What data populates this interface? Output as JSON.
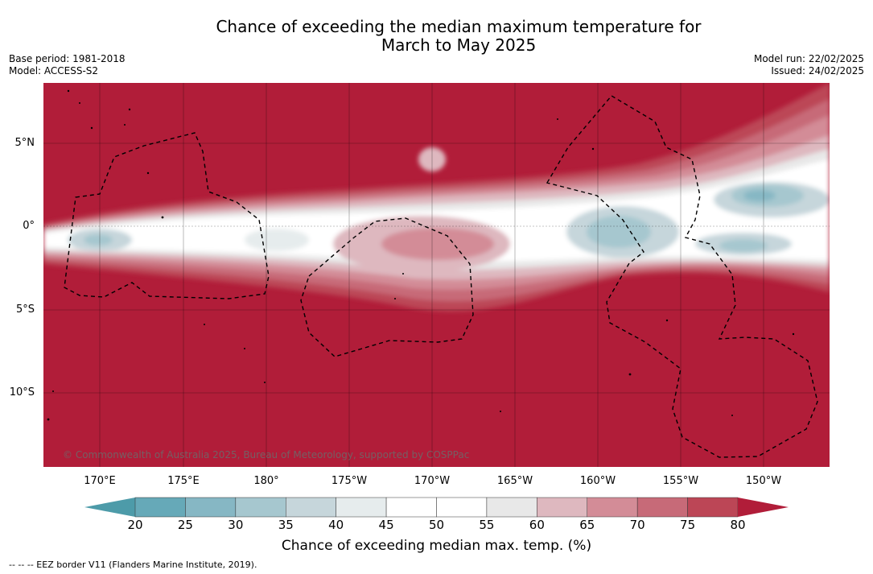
{
  "title": {
    "line1": "Chance of exceeding the median maximum temperature for",
    "line2": "March to May 2025"
  },
  "meta": {
    "base_period": "Base period: 1981-2018",
    "model": "Model: ACCESS-S2",
    "model_run": "Model run: 22/02/2025",
    "issued": "Issued: 24/02/2025"
  },
  "map": {
    "lat_labels": [
      "5°N",
      "0°",
      "5°S",
      "10°S"
    ],
    "lon_labels": [
      "170°E",
      "175°E",
      "180°",
      "175°W",
      "170°W",
      "165°W",
      "160°W",
      "155°W",
      "150°W"
    ],
    "copyright": "© Commonwealth of Australia 2025, Bureau of Meteorology, supported by COSPPac",
    "border_style": "dashed black EEZ boundaries",
    "dominant_category": "> 80 %"
  },
  "colorbar": {
    "ticks": [
      "20",
      "25",
      "30",
      "35",
      "40",
      "45",
      "50",
      "55",
      "60",
      "65",
      "70",
      "75",
      "80"
    ],
    "colors": [
      "#66a9b8",
      "#86b7c4",
      "#a6c7cf",
      "#c6d6db",
      "#e6eced",
      "#ffffff",
      "#ffffff",
      "#e8e8e8",
      "#deb8bf",
      "#d38c97",
      "#c76a78",
      "#bc4656"
    ],
    "low_extend_color": "#4d9ba9",
    "high_extend_color": "#b11d39",
    "label": "Chance of exceeding median max. temp. (%)"
  },
  "footnote": "--  --  -- EEZ border V11 (Flanders Marine Institute, 2019)."
}
